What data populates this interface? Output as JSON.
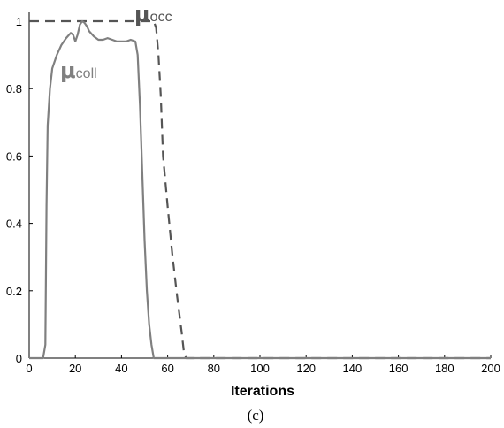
{
  "chart_data": {
    "type": "line",
    "xlabel": "Iterations",
    "ylabel": "",
    "caption": "(c)",
    "xlim": [
      0,
      200
    ],
    "ylim": [
      0,
      1
    ],
    "xticks": [
      0,
      20,
      40,
      60,
      80,
      100,
      120,
      140,
      160,
      180,
      200
    ],
    "yticks": [
      0,
      0.2,
      0.4,
      0.6,
      0.8,
      1
    ],
    "ytick_labels": [
      "0",
      "0.2",
      "0.4",
      "0.6",
      "0.8",
      "1"
    ],
    "grid": false,
    "series": [
      {
        "name": "μocc",
        "label_symbol": "μ",
        "label_sub": "occ",
        "style": "dashed",
        "color": "#555555",
        "x": [
          0,
          54,
          55,
          56,
          57,
          58,
          60,
          62,
          64,
          66,
          67,
          68,
          200
        ],
        "y": [
          1,
          1,
          0.98,
          0.9,
          0.78,
          0.6,
          0.45,
          0.31,
          0.19,
          0.08,
          0.02,
          0,
          0
        ]
      },
      {
        "name": "μcoll",
        "label_symbol": "μ",
        "label_sub": "coll",
        "style": "solid",
        "color": "#808080",
        "x": [
          0,
          6,
          7,
          7.5,
          8,
          9,
          10,
          12,
          14,
          16,
          18,
          19,
          20,
          21,
          22,
          23,
          24,
          25,
          26,
          28,
          30,
          32,
          34,
          36,
          38,
          40,
          42,
          44,
          46,
          47,
          48,
          49,
          50,
          51,
          52,
          53,
          54,
          200
        ],
        "y": [
          0,
          0,
          0.04,
          0.45,
          0.69,
          0.8,
          0.86,
          0.9,
          0.93,
          0.95,
          0.965,
          0.96,
          0.94,
          0.96,
          0.99,
          1.0,
          0.995,
          0.985,
          0.97,
          0.955,
          0.945,
          0.945,
          0.95,
          0.945,
          0.94,
          0.94,
          0.94,
          0.945,
          0.94,
          0.9,
          0.75,
          0.55,
          0.35,
          0.2,
          0.1,
          0.04,
          0,
          0
        ]
      }
    ]
  }
}
